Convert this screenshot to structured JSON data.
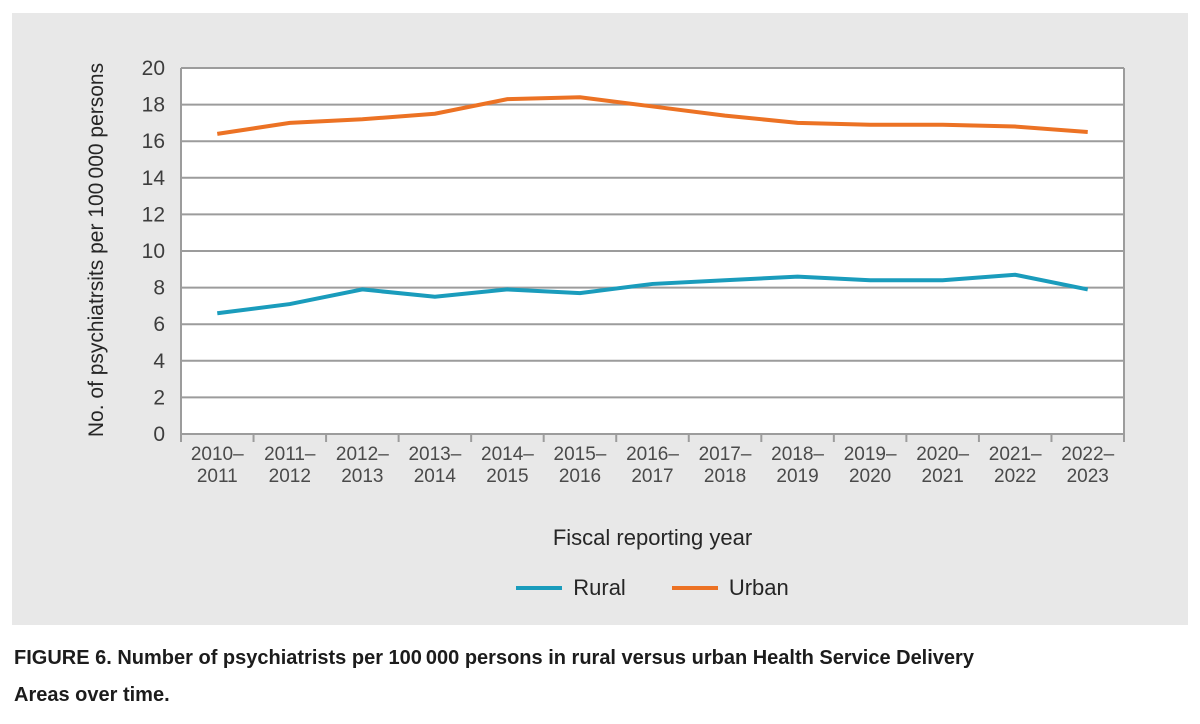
{
  "figure": {
    "caption_label": "FIGURE 6.",
    "caption_rest_line1": "Number of psychiatrists per 100 000 persons in rural versus urban Health Service Delivery",
    "caption_line2": "Areas over time."
  },
  "chart_data": {
    "type": "line",
    "title": "",
    "xlabel": "Fiscal reporting year",
    "ylabel": "No. of psychiatrsits per 100 000 persons",
    "categories": [
      "2010–2011",
      "2011–2012",
      "2012–2013",
      "2013–2014",
      "2014–2015",
      "2015–2016",
      "2016–2017",
      "2017–2018",
      "2018–2019",
      "2019–2020",
      "2020–2021",
      "2021–2022",
      "2022–2023"
    ],
    "series": [
      {
        "name": "Rural",
        "color": "#1a9cbc",
        "values": [
          6.6,
          7.1,
          7.9,
          7.5,
          7.9,
          7.7,
          8.2,
          8.4,
          8.6,
          8.4,
          8.4,
          8.7,
          7.9
        ]
      },
      {
        "name": "Urban",
        "color": "#ec7224",
        "values": [
          16.4,
          17.0,
          17.2,
          17.5,
          18.3,
          18.4,
          17.9,
          17.4,
          17.0,
          16.9,
          16.9,
          16.8,
          16.5
        ]
      }
    ],
    "ylim": [
      0,
      20
    ],
    "ytick_step": 2,
    "grid": "horizontal",
    "legend_position": "bottom"
  },
  "colors": {
    "page_bg": "#ffffff",
    "panel_bg": "#e8e8e8",
    "plot_bg": "#ffffff",
    "gridline": "#9c9c9c",
    "ytick_text": "#3d3d3d",
    "xtick_text": "#4a4a4a",
    "axis_text": "#262626",
    "caption_text": "#1c1c1c"
  }
}
